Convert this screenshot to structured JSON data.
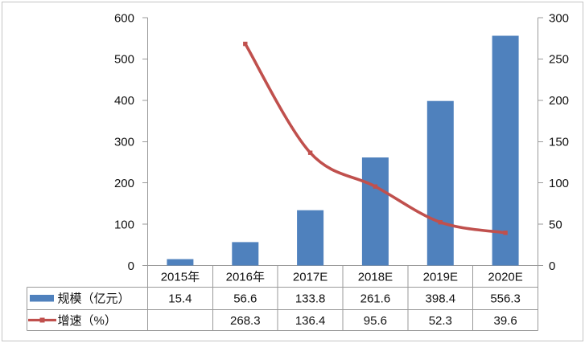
{
  "chart_data": {
    "type": "combo-bar-line",
    "title": "",
    "categories": [
      "2015年",
      "2016年",
      "2017E",
      "2018E",
      "2019E",
      "2020E"
    ],
    "series": [
      {
        "name": "规模（亿元）",
        "type": "bar",
        "axis": "left",
        "color": "#4f81bd",
        "values": [
          15.4,
          56.6,
          133.8,
          261.6,
          398.4,
          556.3
        ],
        "display": [
          "15.4",
          "56.6",
          "133.8",
          "261.6",
          "398.4",
          "556.3"
        ]
      },
      {
        "name": "增速（%）",
        "type": "line",
        "axis": "right",
        "color": "#c0504d",
        "smooth": true,
        "marker": "square",
        "values": [
          null,
          268.3,
          136.4,
          95.6,
          52.3,
          39.6
        ],
        "display": [
          "",
          "268.3",
          "136.4",
          "95.6",
          "52.3",
          "39.6"
        ]
      }
    ],
    "left_axis": {
      "min": 0,
      "max": 600,
      "step": 100,
      "tick_labels": [
        "600",
        "500",
        "400",
        "300",
        "200",
        "100",
        "0"
      ]
    },
    "right_axis": {
      "min": 0,
      "max": 300,
      "step": 50,
      "tick_labels": [
        "300",
        "250",
        "200",
        "150",
        "100",
        "50",
        "0"
      ]
    },
    "gridlines": false,
    "legend_position": "data-table-left",
    "data_table_shown": true
  },
  "colors": {
    "bar": "#4f81bd",
    "line": "#c0504d",
    "axis": "#9a9a9a",
    "table_border": "#9a9a9a",
    "frame": "#c4c4c4",
    "text": "#111111",
    "background": "#ffffff"
  }
}
